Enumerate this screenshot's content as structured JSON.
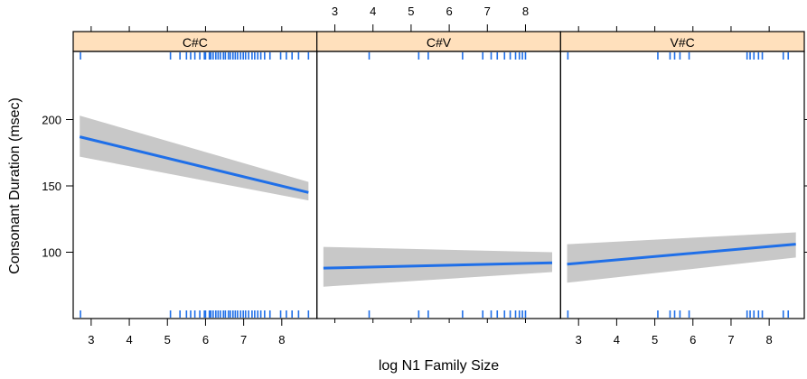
{
  "chart_data": {
    "type": "line",
    "xlabel": "log N1 Family Size",
    "ylabel": "Consonant Duration (msec)",
    "xlim": [
      2.6,
      8.85
    ],
    "ylim": [
      50,
      250
    ],
    "x_ticks": [
      3,
      4,
      5,
      6,
      7,
      8
    ],
    "y_ticks": [
      100,
      150,
      200
    ],
    "strip_color": "#ffe0bc",
    "line_color": "#1f6fe8",
    "band_color": "#c8c8c8",
    "rug_color": "#1f6fe8",
    "panels": [
      {
        "label": "C#C",
        "fit_x": [
          2.7,
          8.7
        ],
        "fit_y": [
          187,
          145
        ],
        "ci_lower": [
          172,
          139
        ],
        "ci_upper": [
          203,
          153
        ],
        "rug": [
          2.72,
          5.08,
          5.33,
          5.5,
          5.61,
          5.72,
          5.85,
          5.97,
          6.0,
          6.1,
          6.14,
          6.2,
          6.27,
          6.33,
          6.39,
          6.47,
          6.52,
          6.6,
          6.65,
          6.72,
          6.78,
          6.84,
          6.92,
          6.99,
          7.05,
          7.13,
          7.22,
          7.29,
          7.37,
          7.45,
          7.55,
          7.69,
          7.97,
          8.12,
          8.27,
          8.44,
          8.7
        ]
      },
      {
        "label": "C#V",
        "fit_x": [
          2.7,
          8.7
        ],
        "fit_y": [
          88,
          92
        ],
        "ci_lower": [
          74,
          85
        ],
        "ci_upper": [
          104,
          100
        ],
        "rug": [
          3.9,
          5.2,
          5.45,
          6.35,
          6.88,
          7.1,
          7.26,
          7.45,
          7.6,
          7.74,
          7.84,
          7.92,
          8.0
        ]
      },
      {
        "label": "V#C",
        "fit_x": [
          2.7,
          8.7
        ],
        "fit_y": [
          91,
          106
        ],
        "ci_lower": [
          77,
          96
        ],
        "ci_upper": [
          106,
          115
        ],
        "rug": [
          2.72,
          5.08,
          5.4,
          5.52,
          5.66,
          5.9,
          7.42,
          7.5,
          7.6,
          7.72,
          7.82,
          8.37,
          8.5
        ]
      }
    ]
  }
}
